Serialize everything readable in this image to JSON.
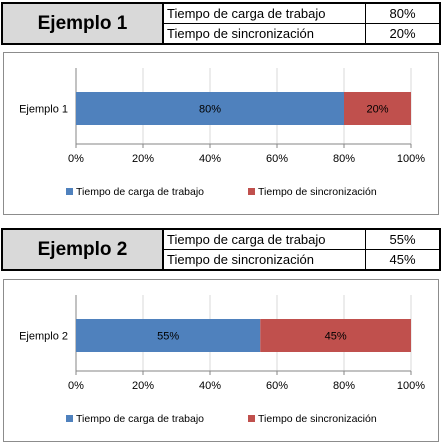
{
  "colors": {
    "blue": "#4f81bd",
    "red": "#c0504d",
    "header_bg": "#d9d9d9",
    "grid": "#d9d9d9"
  },
  "examples": [
    {
      "title": "Ejemplo 1",
      "rows": [
        {
          "label": "Tiempo de carga de trabajo",
          "value": "80%"
        },
        {
          "label": "Tiempo de sincronización",
          "value": "20%"
        }
      ]
    },
    {
      "title": "Ejemplo 2",
      "rows": [
        {
          "label": "Tiempo de carga de trabajo",
          "value": "55%"
        },
        {
          "label": "Tiempo de sincronización",
          "value": "45%"
        }
      ]
    }
  ],
  "chart_data": [
    {
      "type": "bar",
      "orientation": "horizontal",
      "stacking": "percent",
      "categories": [
        "Ejemplo 1"
      ],
      "series": [
        {
          "name": "Tiempo de carga de trabajo",
          "values": [
            80
          ],
          "labels": [
            "80%"
          ],
          "color": "#4f81bd"
        },
        {
          "name": "Tiempo de sincronización",
          "values": [
            20
          ],
          "labels": [
            "20%"
          ],
          "color": "#c0504d"
        }
      ],
      "xlim": [
        0,
        100
      ],
      "xticks": [
        "0%",
        "20%",
        "40%",
        "60%",
        "80%",
        "100%"
      ],
      "grid": true,
      "legend": "bottom"
    },
    {
      "type": "bar",
      "orientation": "horizontal",
      "stacking": "percent",
      "categories": [
        "Ejemplo 2"
      ],
      "series": [
        {
          "name": "Tiempo de carga de trabajo",
          "values": [
            55
          ],
          "labels": [
            "55%"
          ],
          "color": "#4f81bd"
        },
        {
          "name": "Tiempo de sincronización",
          "values": [
            45
          ],
          "labels": [
            "45%"
          ],
          "color": "#c0504d"
        }
      ],
      "xlim": [
        0,
        100
      ],
      "xticks": [
        "0%",
        "20%",
        "40%",
        "60%",
        "80%",
        "100%"
      ],
      "grid": true,
      "legend": "bottom"
    }
  ]
}
